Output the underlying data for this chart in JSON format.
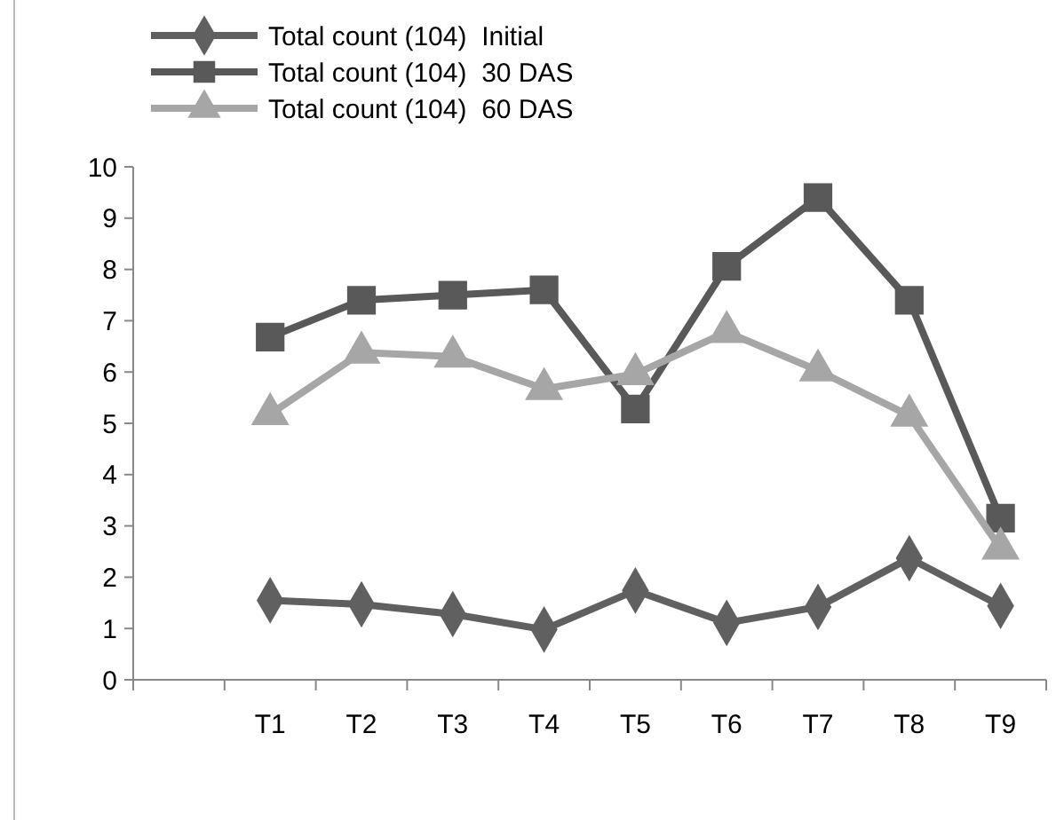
{
  "chart_data": {
    "type": "line",
    "categories": [
      null,
      "T1",
      "T2",
      "T3",
      "T4",
      "T5",
      "T6",
      "T7",
      "T8",
      "T9"
    ],
    "series": [
      {
        "name": "Total count (104)  Initial",
        "color": "#606060",
        "marker": "diamond",
        "values": [
          null,
          1.55,
          1.47,
          1.28,
          0.98,
          1.74,
          1.11,
          1.42,
          2.37,
          1.44
        ]
      },
      {
        "name": "Total count (104)  30 DAS",
        "color": "#595959",
        "marker": "square",
        "values": [
          null,
          6.68,
          7.4,
          7.5,
          7.6,
          5.28,
          8.06,
          9.4,
          7.4,
          3.15
        ]
      },
      {
        "name": "Total count (104)  60 DAS",
        "color": "#a6a6a6",
        "marker": "triangle",
        "values": [
          null,
          5.18,
          6.38,
          6.3,
          5.67,
          5.96,
          6.78,
          6.03,
          5.15,
          2.56
        ]
      }
    ],
    "ylim": [
      0,
      10
    ],
    "yticks": [
      0,
      1,
      2,
      3,
      4,
      5,
      6,
      7,
      8,
      9,
      10
    ],
    "grid": false,
    "legend": "top left"
  }
}
